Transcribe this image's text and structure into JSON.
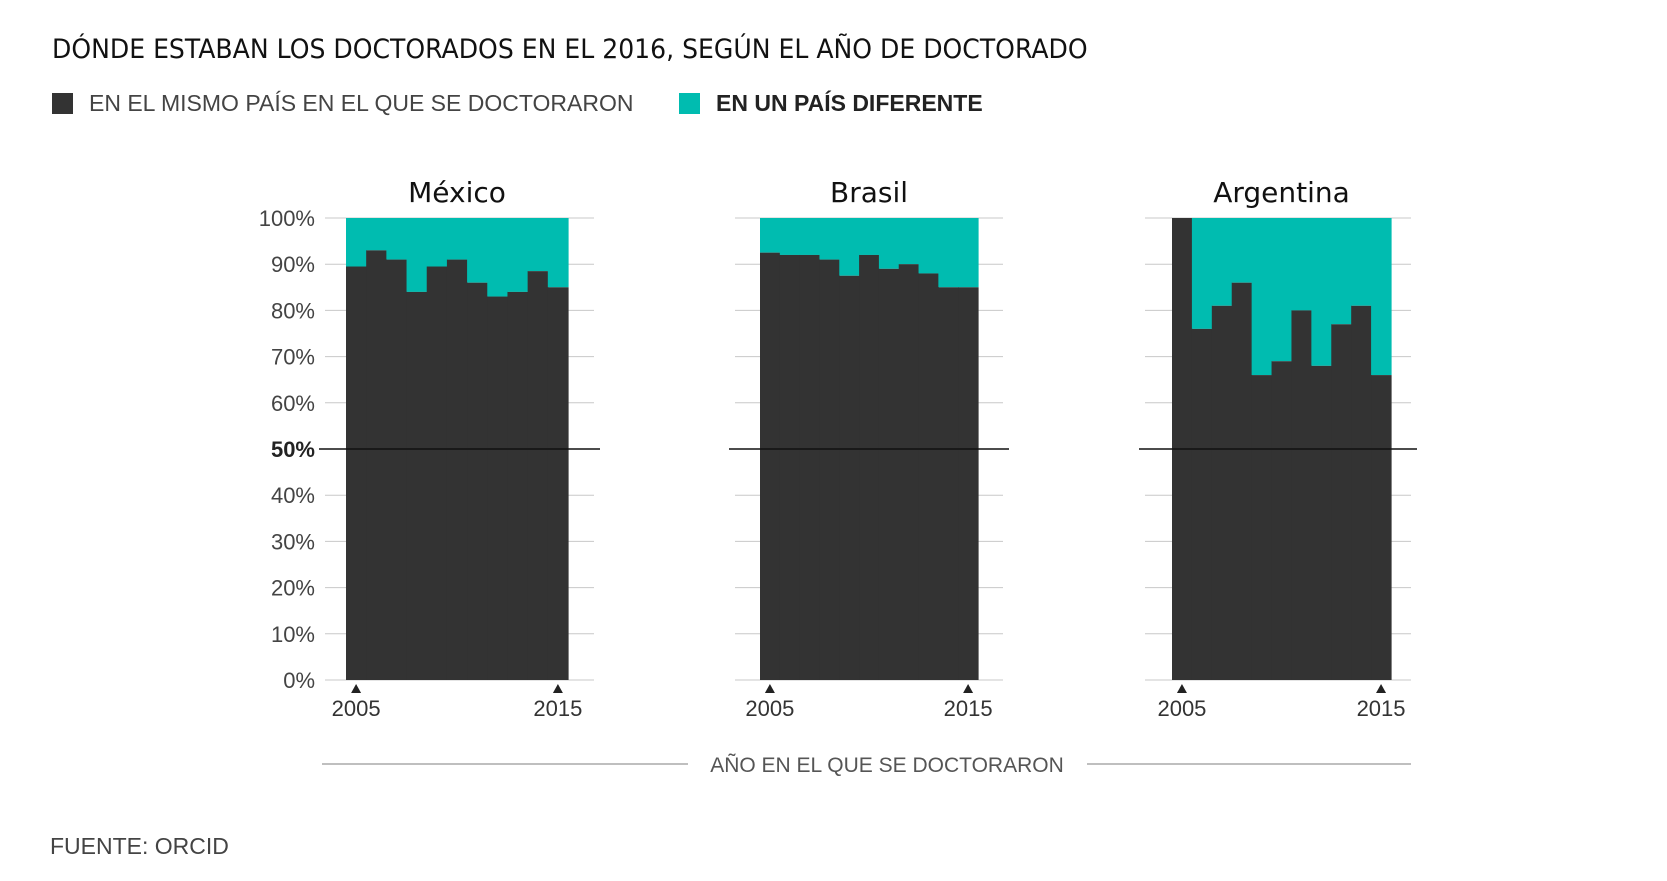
{
  "title": "DÓNDE ESTABAN LOS DOCTORADOS EN EL 2016, SEGÚN EL AÑO DE DOCTORADO",
  "legend": {
    "same": {
      "label": "EN EL MISMO PAÍS EN EL QUE SE DOCTORARON",
      "color": "#333333"
    },
    "different": {
      "label": "EN UN PAÍS DIFERENTE",
      "color": "#00bcb0"
    }
  },
  "source": "FUENTE: ORCID",
  "chart_data": {
    "type": "area",
    "ylim": [
      0,
      100
    ],
    "yticks": [
      "0%",
      "10%",
      "20%",
      "30%",
      "40%",
      "50%",
      "60%",
      "70%",
      "80%",
      "90%",
      "100%"
    ],
    "highlight_line": 50,
    "x_years": [
      2005,
      2006,
      2007,
      2008,
      2009,
      2010,
      2011,
      2012,
      2013,
      2014,
      2015
    ],
    "x_tick_labels": [
      "2005",
      "2015"
    ],
    "xlabel": "AÑO EN EL QUE SE DOCTORARON",
    "grid": true,
    "panels": [
      {
        "name": "México",
        "same_country_pct": [
          89.5,
          93,
          91,
          84,
          89.5,
          91,
          86,
          83,
          84,
          88.5,
          85
        ]
      },
      {
        "name": "Brasil",
        "same_country_pct": [
          92.5,
          92,
          92,
          91,
          87.5,
          92,
          89,
          90,
          88,
          85,
          85
        ]
      },
      {
        "name": "Argentina",
        "same_country_pct": [
          100,
          76,
          81,
          86,
          66,
          69,
          80,
          68,
          77,
          81,
          66
        ]
      }
    ]
  }
}
